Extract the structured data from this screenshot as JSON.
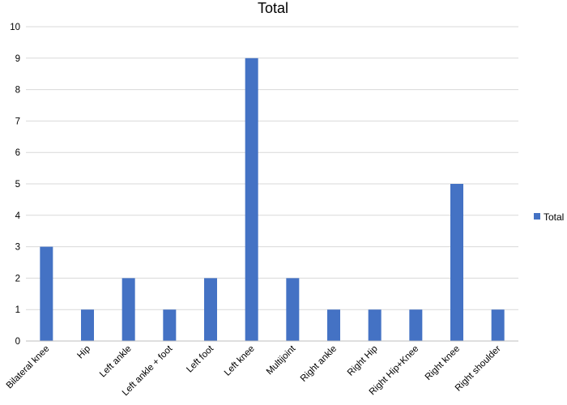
{
  "chart_data": {
    "type": "bar",
    "title": "Total",
    "xlabel": "",
    "ylabel": "",
    "categories": [
      "Bilateral knee",
      "Hip",
      "Left ankle",
      "Left ankle + foot",
      "Left foot",
      "Left knee",
      "Multijoint",
      "Right ankle",
      "Right Hip",
      "Right Hip+Knee",
      "Right knee",
      "Right shoulder"
    ],
    "series": [
      {
        "name": "Total",
        "values": [
          3,
          1,
          2,
          1,
          2,
          9,
          2,
          1,
          1,
          1,
          5,
          1
        ],
        "color": "#4472c4"
      }
    ],
    "ylim": [
      0,
      10
    ],
    "yticks": [
      "0",
      "1",
      "2",
      "3",
      "4",
      "5",
      "6",
      "7",
      "8",
      "9",
      "10"
    ],
    "grid": true,
    "legend": "right"
  }
}
